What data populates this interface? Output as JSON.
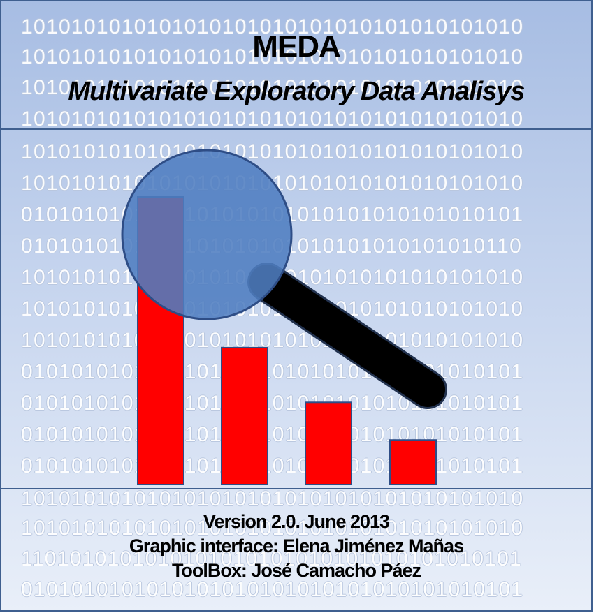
{
  "header": {
    "title": "MEDA",
    "subtitle": "Multivariate Exploratory Data Analisys"
  },
  "binary_background": [
    "1010101010101010101010101010101010101010",
    "1010101010101010101010101010101010101010",
    "1010101010101010101010101010101010101010",
    "1010101010101010101010101010101010101010",
    "1010101010101010101010101010101010101010",
    "1010101010101010101010101010101010101010",
    "0101010101010101010101010101010101010101",
    "0101010101010101010101010101010101010110",
    "1010101010101010101010101010101010101010",
    "1010101010101010101010101010101010101010",
    "1010101010101010101010101010101010101010",
    "0101010101010101010101010101010101010101",
    "0101010101010101010101010101010101010101",
    "0101010101010101010101010101010101010101",
    "0101010101010101010101010101010101010101",
    "1010101010101010101010101010101010101010",
    "1010101010101010101010101010101010101010",
    "1101010101010101010101010101010101010101",
    "0101010101010101010101010101010101010101"
  ],
  "chart_data": {
    "type": "bar",
    "values": [
      420,
      200,
      120,
      65
    ],
    "ylim": [
      0,
      420
    ],
    "bar_color": "#ff0000",
    "bar_border_color": "#2e4d86"
  },
  "magnifier": {
    "lens_color": "#4f7dc0",
    "handle_color": "#000000"
  },
  "footer": {
    "version": "Version 2.0. June 2013",
    "graphic_interface": "Graphic interface: Elena Jiménez Mañas",
    "toolbox": "ToolBox: José Camacho Páez"
  },
  "colors": {
    "frame_border": "#3f5f8f",
    "background_top": "#a7bde3",
    "background_bottom": "#e9eff9"
  }
}
